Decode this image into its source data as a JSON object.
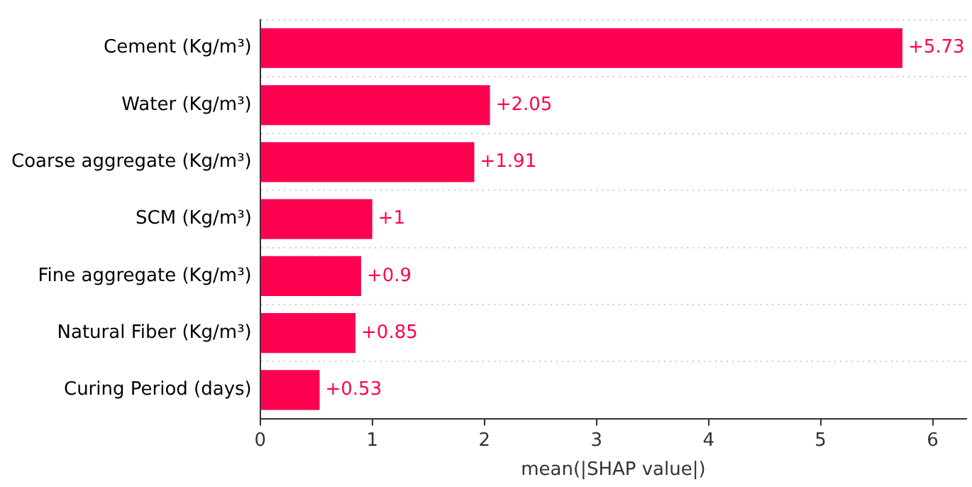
{
  "chart_data": {
    "type": "bar",
    "orientation": "horizontal",
    "xlabel": "mean(|SHAP value|)",
    "categories": [
      "Cement (Kg/m³)",
      "Water (Kg/m³)",
      "Coarse aggregate (Kg/m³)",
      "SCM (Kg/m³)",
      "Fine aggregate (Kg/m³)",
      "Natural Fiber (Kg/m³)",
      "Curing Period (days)"
    ],
    "values": [
      5.73,
      2.05,
      1.91,
      1,
      0.9,
      0.85,
      0.53
    ],
    "value_labels": [
      "+5.73",
      "+2.05",
      "+1.91",
      "+1",
      "+0.9",
      "+0.85",
      "+0.53"
    ],
    "color": "#ff0051",
    "xlim": [
      0,
      6.3
    ],
    "xticks": [
      0,
      1,
      2,
      3,
      4,
      5,
      6
    ],
    "grid": "y",
    "legend": false
  }
}
